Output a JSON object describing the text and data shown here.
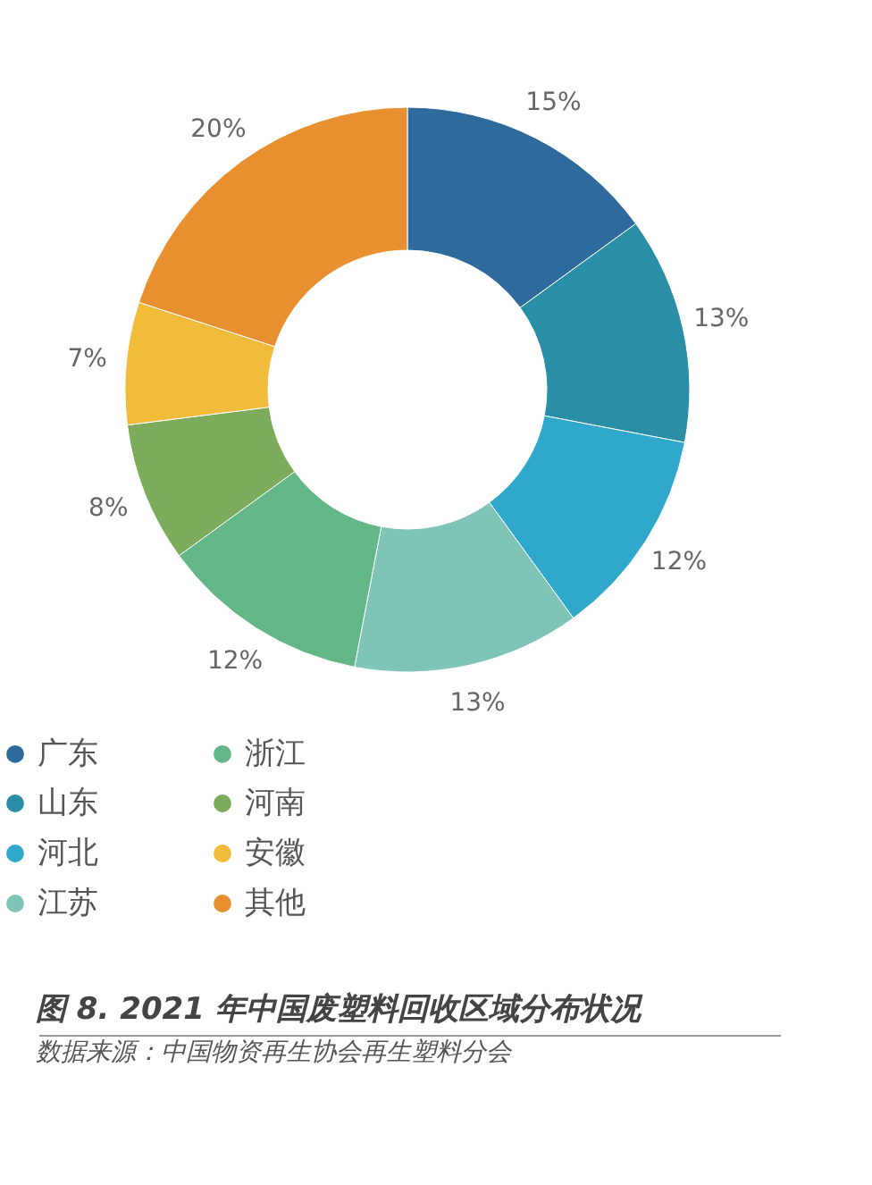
{
  "chart_data": {
    "type": "donut",
    "title": "图 8. 2021 年中国废塑料回收区域分布状况",
    "annotations": [
      "数据来源：中国物资再生协会再生塑料分会"
    ],
    "categories": [
      "广东",
      "山东",
      "河北",
      "江苏",
      "浙江",
      "河南",
      "安徽",
      "其他"
    ],
    "values": [
      15,
      13,
      12,
      13,
      12,
      8,
      7,
      20
    ],
    "value_labels": [
      "15%",
      "13%",
      "12%",
      "13%",
      "12%",
      "8%",
      "7%",
      "20%"
    ],
    "colors": [
      "#2e6a9c",
      "#2a8fa6",
      "#2fa8cc",
      "#7ec4b7",
      "#63b787",
      "#7cab5b",
      "#f0bb38",
      "#e8902f"
    ],
    "legend": "bottom"
  }
}
